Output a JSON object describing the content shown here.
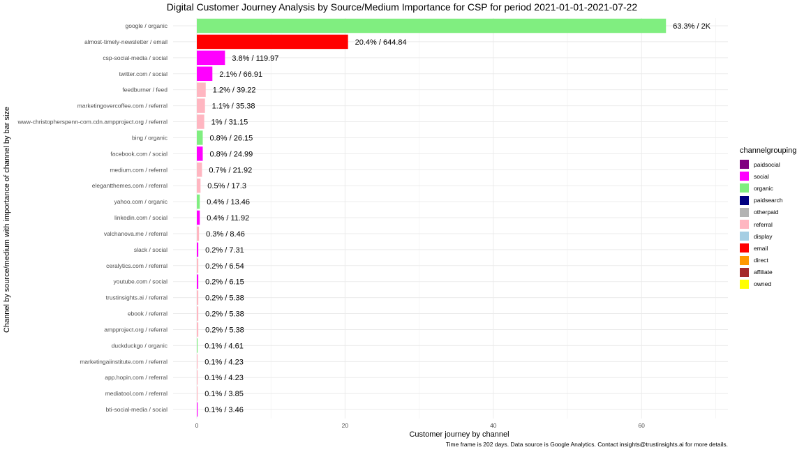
{
  "chart_data": {
    "type": "bar",
    "orientation": "horizontal",
    "title": "Digital Customer Journey Analysis by Source/Medium Importance for CSP for period 2021-01-01-2021-07-22",
    "xlabel": "Customer journey by channel",
    "ylabel": "Channel by source/medium with importance of channel by bar size",
    "caption": "Time frame is 202 days. Data source is Google Analytics. Contact insights@trustinsights.ai for more details.",
    "xlim": [
      0,
      70
    ],
    "xticks": [
      0,
      20,
      40,
      60
    ],
    "grid": true,
    "legend_position": "right",
    "legend": {
      "title": "channelgrouping",
      "entries": [
        {
          "name": "paidsocial",
          "color": "#800080"
        },
        {
          "name": "social",
          "color": "#ff00ff"
        },
        {
          "name": "organic",
          "color": "#80ee80"
        },
        {
          "name": "paidsearch",
          "color": "#000080"
        },
        {
          "name": "otherpaid",
          "color": "#b3b3b3"
        },
        {
          "name": "referral",
          "color": "#ffb6c1"
        },
        {
          "name": "display",
          "color": "#a6cee3"
        },
        {
          "name": "email",
          "color": "#ff0000"
        },
        {
          "name": "direct",
          "color": "#ff9900"
        },
        {
          "name": "affiliate",
          "color": "#a52a2a"
        },
        {
          "name": "owned",
          "color": "#ffff00"
        }
      ]
    },
    "bars": [
      {
        "category": "google / organic",
        "value": 63.3,
        "label": "63.3% / 2K",
        "group": "organic"
      },
      {
        "category": "almost-timely-newsletter / email",
        "value": 20.4,
        "label": "20.4% / 644.84",
        "group": "email"
      },
      {
        "category": "csp-social-media / social",
        "value": 3.8,
        "label": "3.8% / 119.97",
        "group": "social"
      },
      {
        "category": "twitter.com / social",
        "value": 2.1,
        "label": "2.1% / 66.91",
        "group": "social"
      },
      {
        "category": "feedburner / feed",
        "value": 1.2,
        "label": "1.2% / 39.22",
        "group": "referral"
      },
      {
        "category": "marketingovercoffee.com / referral",
        "value": 1.1,
        "label": "1.1% / 35.38",
        "group": "referral"
      },
      {
        "category": "www-christopherspenn-com.cdn.ampproject.org / referral",
        "value": 1.0,
        "label": "1% / 31.15",
        "group": "referral"
      },
      {
        "category": "bing / organic",
        "value": 0.8,
        "label": "0.8% / 26.15",
        "group": "organic"
      },
      {
        "category": "facebook.com / social",
        "value": 0.8,
        "label": "0.8% / 24.99",
        "group": "social"
      },
      {
        "category": "medium.com / referral",
        "value": 0.7,
        "label": "0.7% / 21.92",
        "group": "referral"
      },
      {
        "category": "elegantthemes.com / referral",
        "value": 0.5,
        "label": "0.5% / 17.3",
        "group": "referral"
      },
      {
        "category": "yahoo.com / organic",
        "value": 0.4,
        "label": "0.4% / 13.46",
        "group": "organic"
      },
      {
        "category": "linkedin.com / social",
        "value": 0.4,
        "label": "0.4% / 11.92",
        "group": "social"
      },
      {
        "category": "valchanova.me / referral",
        "value": 0.3,
        "label": "0.3% / 8.46",
        "group": "referral"
      },
      {
        "category": "slack / social",
        "value": 0.2,
        "label": "0.2% / 7.31",
        "group": "social"
      },
      {
        "category": "ceralytics.com / referral",
        "value": 0.2,
        "label": "0.2% / 6.54",
        "group": "referral"
      },
      {
        "category": "youtube.com / social",
        "value": 0.2,
        "label": "0.2% / 6.15",
        "group": "social"
      },
      {
        "category": "trustinsights.ai / referral",
        "value": 0.2,
        "label": "0.2% / 5.38",
        "group": "referral"
      },
      {
        "category": "ebook / referral",
        "value": 0.2,
        "label": "0.2% / 5.38",
        "group": "referral"
      },
      {
        "category": "ampproject.org / referral",
        "value": 0.2,
        "label": "0.2% / 5.38",
        "group": "referral"
      },
      {
        "category": "duckduckgo / organic",
        "value": 0.1,
        "label": "0.1% / 4.61",
        "group": "organic"
      },
      {
        "category": "marketingaiinstitute.com / referral",
        "value": 0.1,
        "label": "0.1% / 4.23",
        "group": "referral"
      },
      {
        "category": "app.hopin.com / referral",
        "value": 0.1,
        "label": "0.1% / 4.23",
        "group": "referral"
      },
      {
        "category": "mediatool.com / referral",
        "value": 0.1,
        "label": "0.1% / 3.85",
        "group": "referral"
      },
      {
        "category": "bti-social-media / social",
        "value": 0.1,
        "label": "0.1% / 3.46",
        "group": "social"
      }
    ]
  }
}
